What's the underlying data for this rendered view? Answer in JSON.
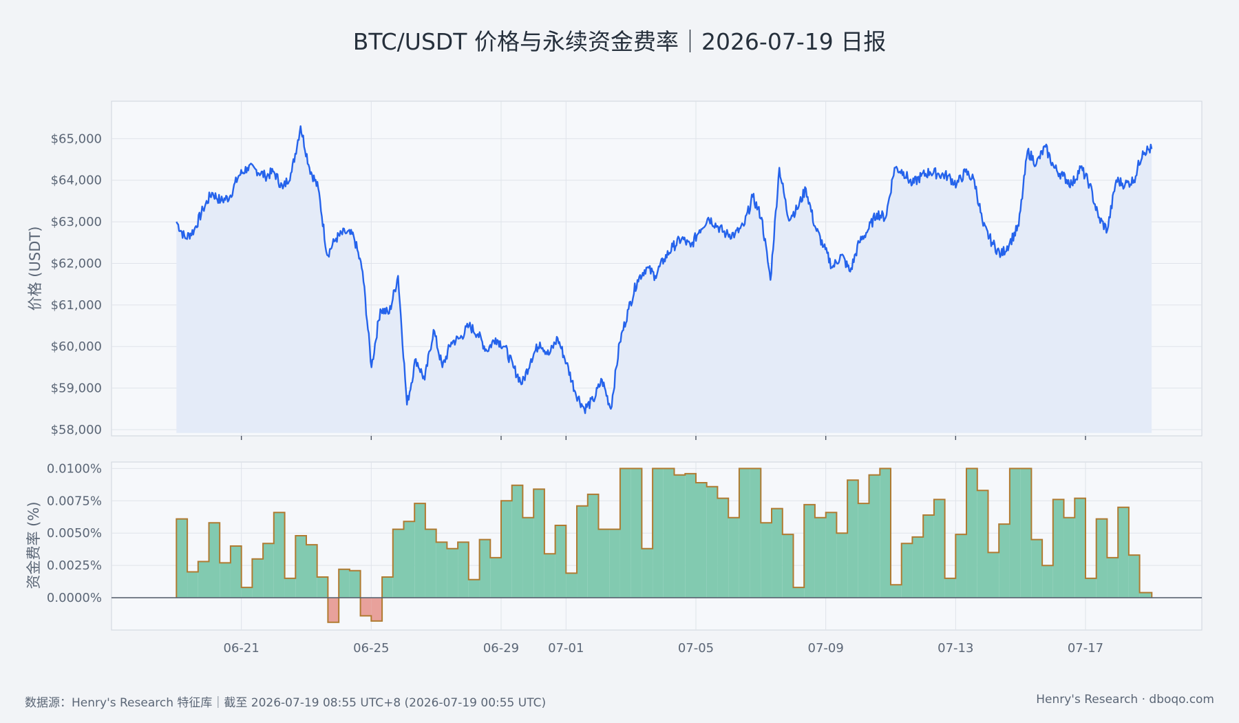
{
  "title": "BTC/USDT 价格与永续资金费率｜2026-07-19 日报",
  "footer": {
    "source": "数据源：Henry's Research 特征库｜截至 2026-07-19 08:55 UTC+8 (2026-07-19 00:55 UTC)",
    "brand": "Henry's Research · dboqo.com"
  },
  "colors": {
    "price_line": "#2563eb",
    "price_fill": "#e4ebf8",
    "funding_positive": "#82cab0",
    "funding_negative": "#e8a19b",
    "funding_edge": "#b07a30",
    "zero_line": "#5a6270",
    "grid": "#dfe3ea",
    "panel_bg": "#f6f8fb",
    "panel_border": "#d5d9e1"
  },
  "chart_data": [
    {
      "type": "line",
      "series": [
        {
          "name": "",
          "x_start": "2026-06-19 00:00",
          "x_end": "2026-07-19 00:55",
          "values": [
            63000,
            62600,
            62800,
            63300,
            63700,
            63500,
            63600,
            64100,
            64300,
            64250,
            64100,
            64200,
            63800,
            64200,
            65300,
            64300,
            63800,
            62200,
            62600,
            62750,
            62650,
            61800,
            59500,
            60900,
            60800,
            61700,
            58600,
            59700,
            59200,
            60400,
            59500,
            60100,
            60200,
            60500,
            60300,
            59900,
            60200,
            60000,
            59500,
            59100,
            59700,
            60100,
            59800,
            60200,
            59600,
            58900,
            58500,
            58700,
            59200,
            58500,
            60100,
            60900,
            61600,
            61900,
            61700,
            62100,
            62400,
            62600,
            62400,
            62800,
            63100,
            62900,
            62700,
            62700,
            62900,
            63600,
            63100,
            61600,
            64300,
            63100,
            63300,
            63800,
            62900,
            62400,
            61900,
            62200,
            61800,
            62500,
            62800,
            63200,
            63100,
            64300,
            64200,
            63900,
            64100,
            64200,
            64150,
            64100,
            63900,
            64200,
            64000,
            62900,
            62500,
            62200,
            62500,
            62900,
            64700,
            64400,
            64800,
            64300,
            64100,
            63900,
            64300,
            63900,
            63100,
            62800,
            64000,
            63900,
            64000,
            64700,
            64750
          ]
        }
      ],
      "y_ticks": [
        "$58,000",
        "$59,000",
        "$60,000",
        "$61,000",
        "$62,000",
        "$63,000",
        "$64,000",
        "$65,000"
      ],
      "ylabel": "价格 (USDT)",
      "ylim": [
        57850,
        65900
      ],
      "grid": true
    },
    {
      "type": "area",
      "series": [
        {
          "name": "",
          "x": [
            "2026-06-19 00:00",
            "2026-06-19 08:00",
            "2026-06-19 16:00",
            "2026-06-20 00:00",
            "2026-06-20 08:00",
            "2026-06-20 16:00",
            "2026-06-21 00:00",
            "2026-06-21 08:00",
            "2026-06-21 16:00",
            "2026-06-22 00:00",
            "2026-06-22 08:00",
            "2026-06-22 16:00",
            "2026-06-23 00:00",
            "2026-06-23 08:00",
            "2026-06-23 16:00",
            "2026-06-24 00:00",
            "2026-06-24 08:00",
            "2026-06-24 16:00",
            "2026-06-25 00:00",
            "2026-06-25 08:00",
            "2026-06-25 16:00",
            "2026-06-26 00:00",
            "2026-06-26 08:00",
            "2026-06-26 16:00",
            "2026-06-27 00:00",
            "2026-06-27 08:00",
            "2026-06-27 16:00",
            "2026-06-28 00:00",
            "2026-06-28 08:00",
            "2026-06-28 16:00",
            "2026-06-29 00:00",
            "2026-06-29 08:00",
            "2026-06-29 16:00",
            "2026-06-30 00:00",
            "2026-06-30 08:00",
            "2026-06-30 16:00",
            "2026-07-01 00:00",
            "2026-07-01 08:00",
            "2026-07-01 16:00",
            "2026-07-02 00:00",
            "2026-07-02 08:00",
            "2026-07-02 16:00",
            "2026-07-03 00:00",
            "2026-07-03 08:00",
            "2026-07-03 16:00",
            "2026-07-04 00:00",
            "2026-07-04 08:00",
            "2026-07-04 16:00",
            "2026-07-05 00:00",
            "2026-07-05 08:00",
            "2026-07-05 16:00",
            "2026-07-06 00:00",
            "2026-07-06 08:00",
            "2026-07-06 16:00",
            "2026-07-07 00:00",
            "2026-07-07 08:00",
            "2026-07-07 16:00",
            "2026-07-08 00:00",
            "2026-07-08 08:00",
            "2026-07-08 16:00",
            "2026-07-09 00:00",
            "2026-07-09 08:00",
            "2026-07-09 16:00",
            "2026-07-10 00:00",
            "2026-07-10 08:00",
            "2026-07-10 16:00",
            "2026-07-11 00:00",
            "2026-07-11 08:00",
            "2026-07-11 16:00",
            "2026-07-12 00:00",
            "2026-07-12 08:00",
            "2026-07-12 16:00",
            "2026-07-13 00:00",
            "2026-07-13 08:00",
            "2026-07-13 16:00",
            "2026-07-14 00:00",
            "2026-07-14 08:00",
            "2026-07-14 16:00",
            "2026-07-15 00:00",
            "2026-07-15 08:00",
            "2026-07-15 16:00",
            "2026-07-16 00:00",
            "2026-07-16 08:00",
            "2026-07-16 16:00",
            "2026-07-17 00:00",
            "2026-07-17 08:00",
            "2026-07-17 16:00",
            "2026-07-18 00:00",
            "2026-07-18 08:00",
            "2026-07-18 16:00",
            "2026-07-19 00:00"
          ],
          "values": [
            0.0061,
            0.002,
            0.0028,
            0.0058,
            0.0027,
            0.004,
            0.0008,
            0.003,
            0.0042,
            0.0066,
            0.0015,
            0.0048,
            0.0041,
            0.0016,
            -0.0019,
            0.0022,
            0.0021,
            -0.0014,
            -0.0018,
            0.0016,
            0.0053,
            0.0059,
            0.0073,
            0.0053,
            0.0043,
            0.0038,
            0.0043,
            0.0014,
            0.0045,
            0.0031,
            0.0075,
            0.0087,
            0.0062,
            0.0084,
            0.0034,
            0.0056,
            0.0019,
            0.0071,
            0.008,
            0.0053,
            0.0053,
            0.01,
            0.01,
            0.0038,
            0.01,
            0.01,
            0.0095,
            0.0096,
            0.0089,
            0.0086,
            0.0077,
            0.0062,
            0.01,
            0.01,
            0.0058,
            0.0069,
            0.0049,
            0.0008,
            0.0072,
            0.0062,
            0.0066,
            0.005,
            0.0091,
            0.0073,
            0.0095,
            0.01,
            0.001,
            0.0042,
            0.0047,
            0.0064,
            0.0076,
            0.0015,
            0.0049,
            0.01,
            0.0083,
            0.0035,
            0.0057,
            0.01,
            0.01,
            0.0045,
            0.0025,
            0.0076,
            0.0062,
            0.0077,
            0.0015,
            0.0061,
            0.0031,
            0.007,
            0.0033,
            0.0004,
            0.0004
          ]
        }
      ],
      "y_ticks": [
        "0.0000%",
        "0.0025%",
        "0.0050%",
        "0.0075%",
        "0.0100%"
      ],
      "ylabel": "资金费率 (%)",
      "ylim": [
        -0.0025,
        0.0105
      ],
      "x_ticks": [
        "06-21",
        "06-25",
        "06-29",
        "07-01",
        "07-05",
        "07-09",
        "07-13",
        "07-17"
      ],
      "grid": true
    }
  ]
}
